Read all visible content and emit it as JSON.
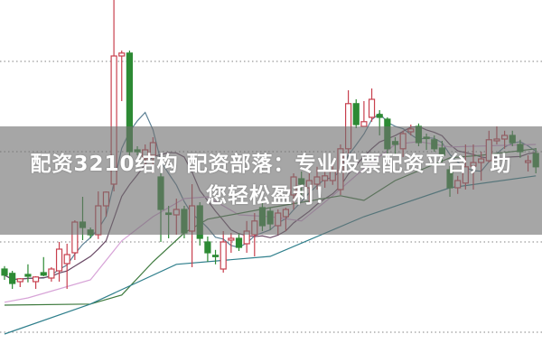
{
  "headline": {
    "line1": "配资3210结构 配资部落：专业股票配资平台，助",
    "line2": "您轻松盈利！"
  },
  "chart_data": {
    "type": "candlestick",
    "title": "",
    "xlabel": "",
    "ylabel": "",
    "ylim": [
      0,
      100
    ],
    "grid": "horizontal-dotted",
    "gridlines": [
      83,
      58,
      33,
      8
    ],
    "colors": {
      "up": "#c8404e",
      "down": "#2d8a34",
      "ma5": "#5e8296",
      "ma10": "#6a4a66",
      "ma20": "#d7a3d7",
      "ma60": "#3e7a3e",
      "ma120": "#2f7f8c",
      "grid": "#9a9a9a"
    },
    "candles": [
      [
        25.5,
        26.3,
        22.5,
        23.8
      ],
      [
        24.3,
        25,
        20,
        21.5
      ],
      [
        22,
        23,
        20.5,
        22.8
      ],
      [
        24,
        26.8,
        21.8,
        23.5
      ],
      [
        22,
        23.5,
        20,
        23.3
      ],
      [
        24.5,
        28.8,
        23.5,
        23.8
      ],
      [
        23,
        26,
        22,
        25.5
      ],
      [
        25,
        33,
        22,
        31
      ],
      [
        27,
        32.5,
        20,
        29.5
      ],
      [
        30,
        39,
        28,
        38.5
      ],
      [
        38.5,
        45.5,
        33.5,
        37
      ],
      [
        36.3,
        37,
        34,
        35
      ],
      [
        35,
        47,
        33.8,
        43
      ],
      [
        43,
        47,
        40,
        46.8
      ],
      [
        49,
        100,
        47,
        84.5
      ],
      [
        84.5,
        86,
        72,
        85.3
      ],
      [
        85.3,
        86,
        56,
        58
      ],
      [
        58.5,
        59.5,
        57,
        58
      ],
      [
        56,
        60,
        54,
        58.5
      ],
      [
        57,
        62,
        52,
        60.5
      ],
      [
        51,
        52,
        33,
        42
      ],
      [
        41,
        43,
        34,
        40.8
      ],
      [
        40.5,
        45,
        35,
        42
      ],
      [
        42,
        43,
        34,
        35.5
      ],
      [
        36,
        49,
        26,
        43
      ],
      [
        43,
        44,
        32,
        34
      ],
      [
        33,
        34.5,
        27.5,
        30
      ],
      [
        29.3,
        30.8,
        26.8,
        29
      ],
      [
        25.5,
        36,
        24.5,
        33
      ],
      [
        33.5,
        35.5,
        30,
        34
      ],
      [
        34,
        35.5,
        30.5,
        31.5
      ],
      [
        32.5,
        38.8,
        30,
        36
      ],
      [
        35,
        41,
        29,
        38.8
      ],
      [
        42.5,
        44,
        36,
        37.5
      ],
      [
        41.5,
        42.5,
        36.3,
        38
      ],
      [
        37.5,
        42,
        35,
        41
      ],
      [
        40,
        42.5,
        36,
        42
      ],
      [
        46,
        52,
        42,
        51
      ],
      [
        50.5,
        52.5,
        45,
        49
      ],
      [
        48,
        52,
        44,
        50
      ],
      [
        49,
        53.8,
        47.5,
        51
      ],
      [
        50,
        53,
        48,
        51.3
      ],
      [
        50,
        55,
        48.8,
        52.5
      ],
      [
        47.5,
        60,
        46,
        58.8
      ],
      [
        58.8,
        75,
        57.5,
        71.3
      ],
      [
        71.3,
        72.5,
        64.5,
        65.5
      ],
      [
        65,
        72,
        65,
        66.3
      ],
      [
        67.5,
        75.5,
        66.3,
        72.5
      ],
      [
        68.3,
        69.5,
        62.5,
        67.5
      ],
      [
        67,
        67.5,
        57.5,
        58.8
      ],
      [
        60.8,
        62,
        57,
        60
      ],
      [
        58.8,
        63.8,
        56.5,
        63
      ],
      [
        63.5,
        65.5,
        62.5,
        64.3
      ],
      [
        65,
        65.8,
        59.5,
        60.5
      ],
      [
        62,
        63,
        58.5,
        61.8
      ],
      [
        61.3,
        62.5,
        58,
        58.8
      ],
      [
        59,
        61,
        55,
        57
      ],
      [
        53,
        54,
        45.5,
        48
      ],
      [
        48,
        51.3,
        46.3,
        50
      ],
      [
        49.3,
        60,
        47.5,
        53.8
      ],
      [
        54,
        60,
        47.5,
        55
      ],
      [
        55,
        58,
        50,
        56
      ],
      [
        55.5,
        63.8,
        55,
        61.3
      ],
      [
        61,
        65,
        60,
        61.5
      ],
      [
        61.5,
        63.8,
        58.8,
        62.5
      ],
      [
        62.5,
        63.8,
        59.5,
        60.5
      ],
      [
        60,
        61.3,
        56.3,
        58
      ],
      [
        55,
        57,
        52.5,
        55.5
      ],
      [
        57.5,
        59,
        52,
        53.8
      ]
    ],
    "moving_averages": [
      {
        "key": "ma5",
        "period": 5
      },
      {
        "key": "ma10",
        "period": 10
      },
      {
        "key": "ma20",
        "points": [
          [
            0,
            16.3
          ],
          [
            3,
            17.5
          ],
          [
            11,
            22.5
          ],
          [
            15,
            33.3
          ],
          [
            19,
            40
          ],
          [
            23,
            45
          ],
          [
            26,
            45.5
          ],
          [
            30,
            40.5
          ],
          [
            34,
            40
          ],
          [
            38,
            38.8
          ],
          [
            42,
            45.8
          ],
          [
            46,
            53.3
          ],
          [
            50,
            60
          ],
          [
            53,
            60.8
          ],
          [
            57,
            59.3
          ],
          [
            68,
            60
          ]
        ]
      },
      {
        "key": "ma60",
        "points": [
          [
            0,
            15.5
          ],
          [
            11,
            15.8
          ],
          [
            15,
            18.3
          ],
          [
            19,
            27.5
          ],
          [
            23,
            35.5
          ],
          [
            26,
            39.3
          ],
          [
            34,
            42.5
          ],
          [
            43,
            45.8
          ],
          [
            46,
            44.5
          ],
          [
            50,
            50
          ],
          [
            57,
            56.3
          ],
          [
            61,
            57
          ],
          [
            68,
            58.8
          ]
        ]
      },
      {
        "key": "ma120",
        "points": [
          [
            0,
            7.5
          ],
          [
            11,
            15.8
          ],
          [
            22,
            26.8
          ],
          [
            34,
            29
          ],
          [
            46,
            40
          ],
          [
            57,
            48
          ],
          [
            68,
            51.3
          ]
        ]
      }
    ]
  }
}
